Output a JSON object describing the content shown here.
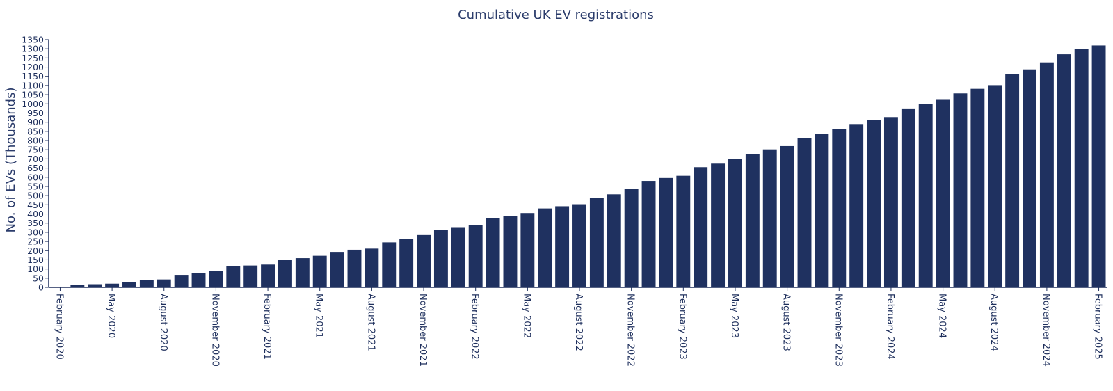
{
  "chart_data": {
    "type": "bar",
    "title": "Cumulative UK EV registrations",
    "xlabel": "",
    "ylabel": "No. of EVs (Thousands)",
    "ylim": [
      0,
      1350
    ],
    "ytick_step": 50,
    "bar_color": "#1f3160",
    "x_tick_labels": [
      "February 2020",
      "May 2020",
      "August 2020",
      "November 2020",
      "February 2021",
      "May 2021",
      "August 2021",
      "November 2021",
      "February 2022",
      "May 2022",
      "August 2022",
      "November 2022",
      "February 2023",
      "May 2023",
      "August 2023",
      "November 2023",
      "February 2024",
      "May 2024",
      "August 2024",
      "November 2024",
      "February 2025"
    ],
    "categories": [
      "February 2020",
      "March 2020",
      "April 2020",
      "May 2020",
      "June 2020",
      "July 2020",
      "August 2020",
      "September 2020",
      "October 2020",
      "November 2020",
      "December 2020",
      "January 2021",
      "February 2021",
      "March 2021",
      "April 2021",
      "May 2021",
      "June 2021",
      "July 2021",
      "August 2021",
      "September 2021",
      "October 2021",
      "November 2021",
      "December 2021",
      "January 2022",
      "February 2022",
      "March 2022",
      "April 2022",
      "May 2022",
      "June 2022",
      "July 2022",
      "August 2022",
      "September 2022",
      "October 2022",
      "November 2022",
      "December 2022",
      "January 2023",
      "February 2023",
      "March 2023",
      "April 2023",
      "May 2023",
      "June 2023",
      "July 2023",
      "August 2023",
      "September 2023",
      "October 2023",
      "November 2023",
      "December 2023",
      "January 2024",
      "February 2024",
      "March 2024",
      "April 2024",
      "May 2024",
      "June 2024",
      "July 2024",
      "August 2024",
      "September 2024",
      "October 2024",
      "November 2024",
      "December 2024",
      "January 2025",
      "February 2025"
    ],
    "values": [
      2,
      14,
      17,
      20,
      28,
      38,
      43,
      68,
      78,
      90,
      114,
      119,
      124,
      148,
      159,
      172,
      193,
      205,
      211,
      245,
      262,
      285,
      313,
      328,
      339,
      377,
      390,
      405,
      430,
      442,
      453,
      488,
      507,
      537,
      580,
      596,
      608,
      655,
      674,
      699,
      728,
      752,
      770,
      815,
      838,
      863,
      890,
      912,
      928,
      975,
      998,
      1022,
      1057,
      1082,
      1102,
      1162,
      1188,
      1226,
      1270,
      1300,
      1318
    ]
  }
}
